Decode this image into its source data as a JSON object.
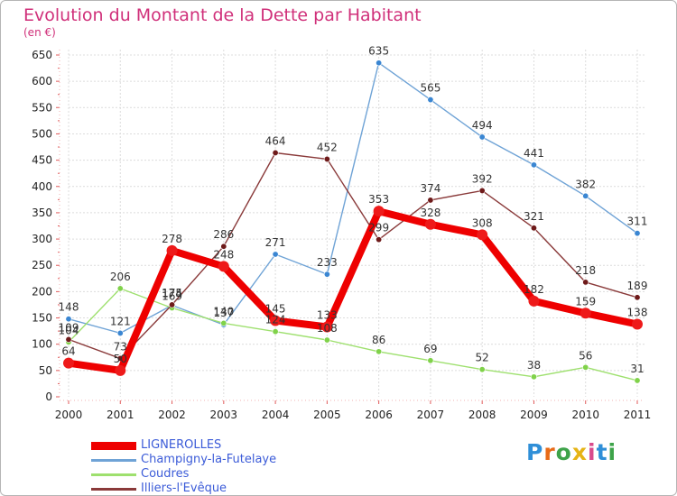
{
  "title": "Evolution du Montant de la Dette par Habitant",
  "subtitle": "(en €)",
  "logo": {
    "text": "Proxiti",
    "letters": [
      "P",
      "r",
      "o",
      "x",
      "i",
      "t",
      "i"
    ],
    "colors": [
      "#2f8fd8",
      "#e86a17",
      "#3ea34a",
      "#e6b416",
      "#d94a8c",
      "#2f8fd8",
      "#3ea34a"
    ]
  },
  "chart_data": {
    "type": "line",
    "x": [
      "2000",
      "2001",
      "2002",
      "2003",
      "2004",
      "2005",
      "2006",
      "2007",
      "2008",
      "2009",
      "2010",
      "2011"
    ],
    "ylim": [
      0,
      650
    ],
    "yticks": [
      "0",
      "50",
      "100",
      "150",
      "200",
      "250",
      "300",
      "350",
      "400",
      "450",
      "500",
      "550",
      "600",
      "650"
    ],
    "grid": true,
    "legend_position": "bottom-left",
    "series": [
      {
        "name": "LIGNEROLLES",
        "color": "#ee0000",
        "dot_color": "#ee1a1a",
        "values": [
          64,
          50,
          278,
          248,
          145,
          133,
          353,
          328,
          308,
          182,
          159,
          138
        ],
        "labels": [
          "64",
          "50",
          "278",
          "248",
          "145",
          "133",
          "353",
          "328",
          "308",
          "182",
          "159",
          "138"
        ]
      },
      {
        "name": "Champigny-la-Futelaye",
        "color": "#6fa3d6",
        "dot_color": "#3a86d2",
        "values": [
          148,
          121,
          174,
          137,
          271,
          233,
          635,
          565,
          494,
          441,
          382,
          311
        ],
        "labels": [
          "148",
          "121",
          "174",
          "137",
          "271",
          "233",
          "635",
          "565",
          "494",
          "441",
          "382",
          "311"
        ]
      },
      {
        "name": "Coudres",
        "color": "#9ee06e",
        "dot_color": "#80d24a",
        "values": [
          104,
          206,
          169,
          140,
          124,
          108,
          86,
          69,
          52,
          38,
          56,
          31
        ],
        "labels": [
          "104",
          "206",
          "169",
          "140",
          "124",
          "108",
          "86",
          "69",
          "52",
          "38",
          "56",
          "31"
        ]
      },
      {
        "name": "Illiers-l'Evêque",
        "color": "#8a3a3a",
        "dot_color": "#6e1a1a",
        "values": [
          109,
          73,
          175,
          286,
          464,
          452,
          299,
          374,
          392,
          321,
          218,
          189
        ],
        "labels": [
          "109",
          "73",
          "175",
          "286",
          "464",
          "452",
          "299",
          "374",
          "392",
          "321",
          "218",
          "189"
        ]
      }
    ]
  }
}
